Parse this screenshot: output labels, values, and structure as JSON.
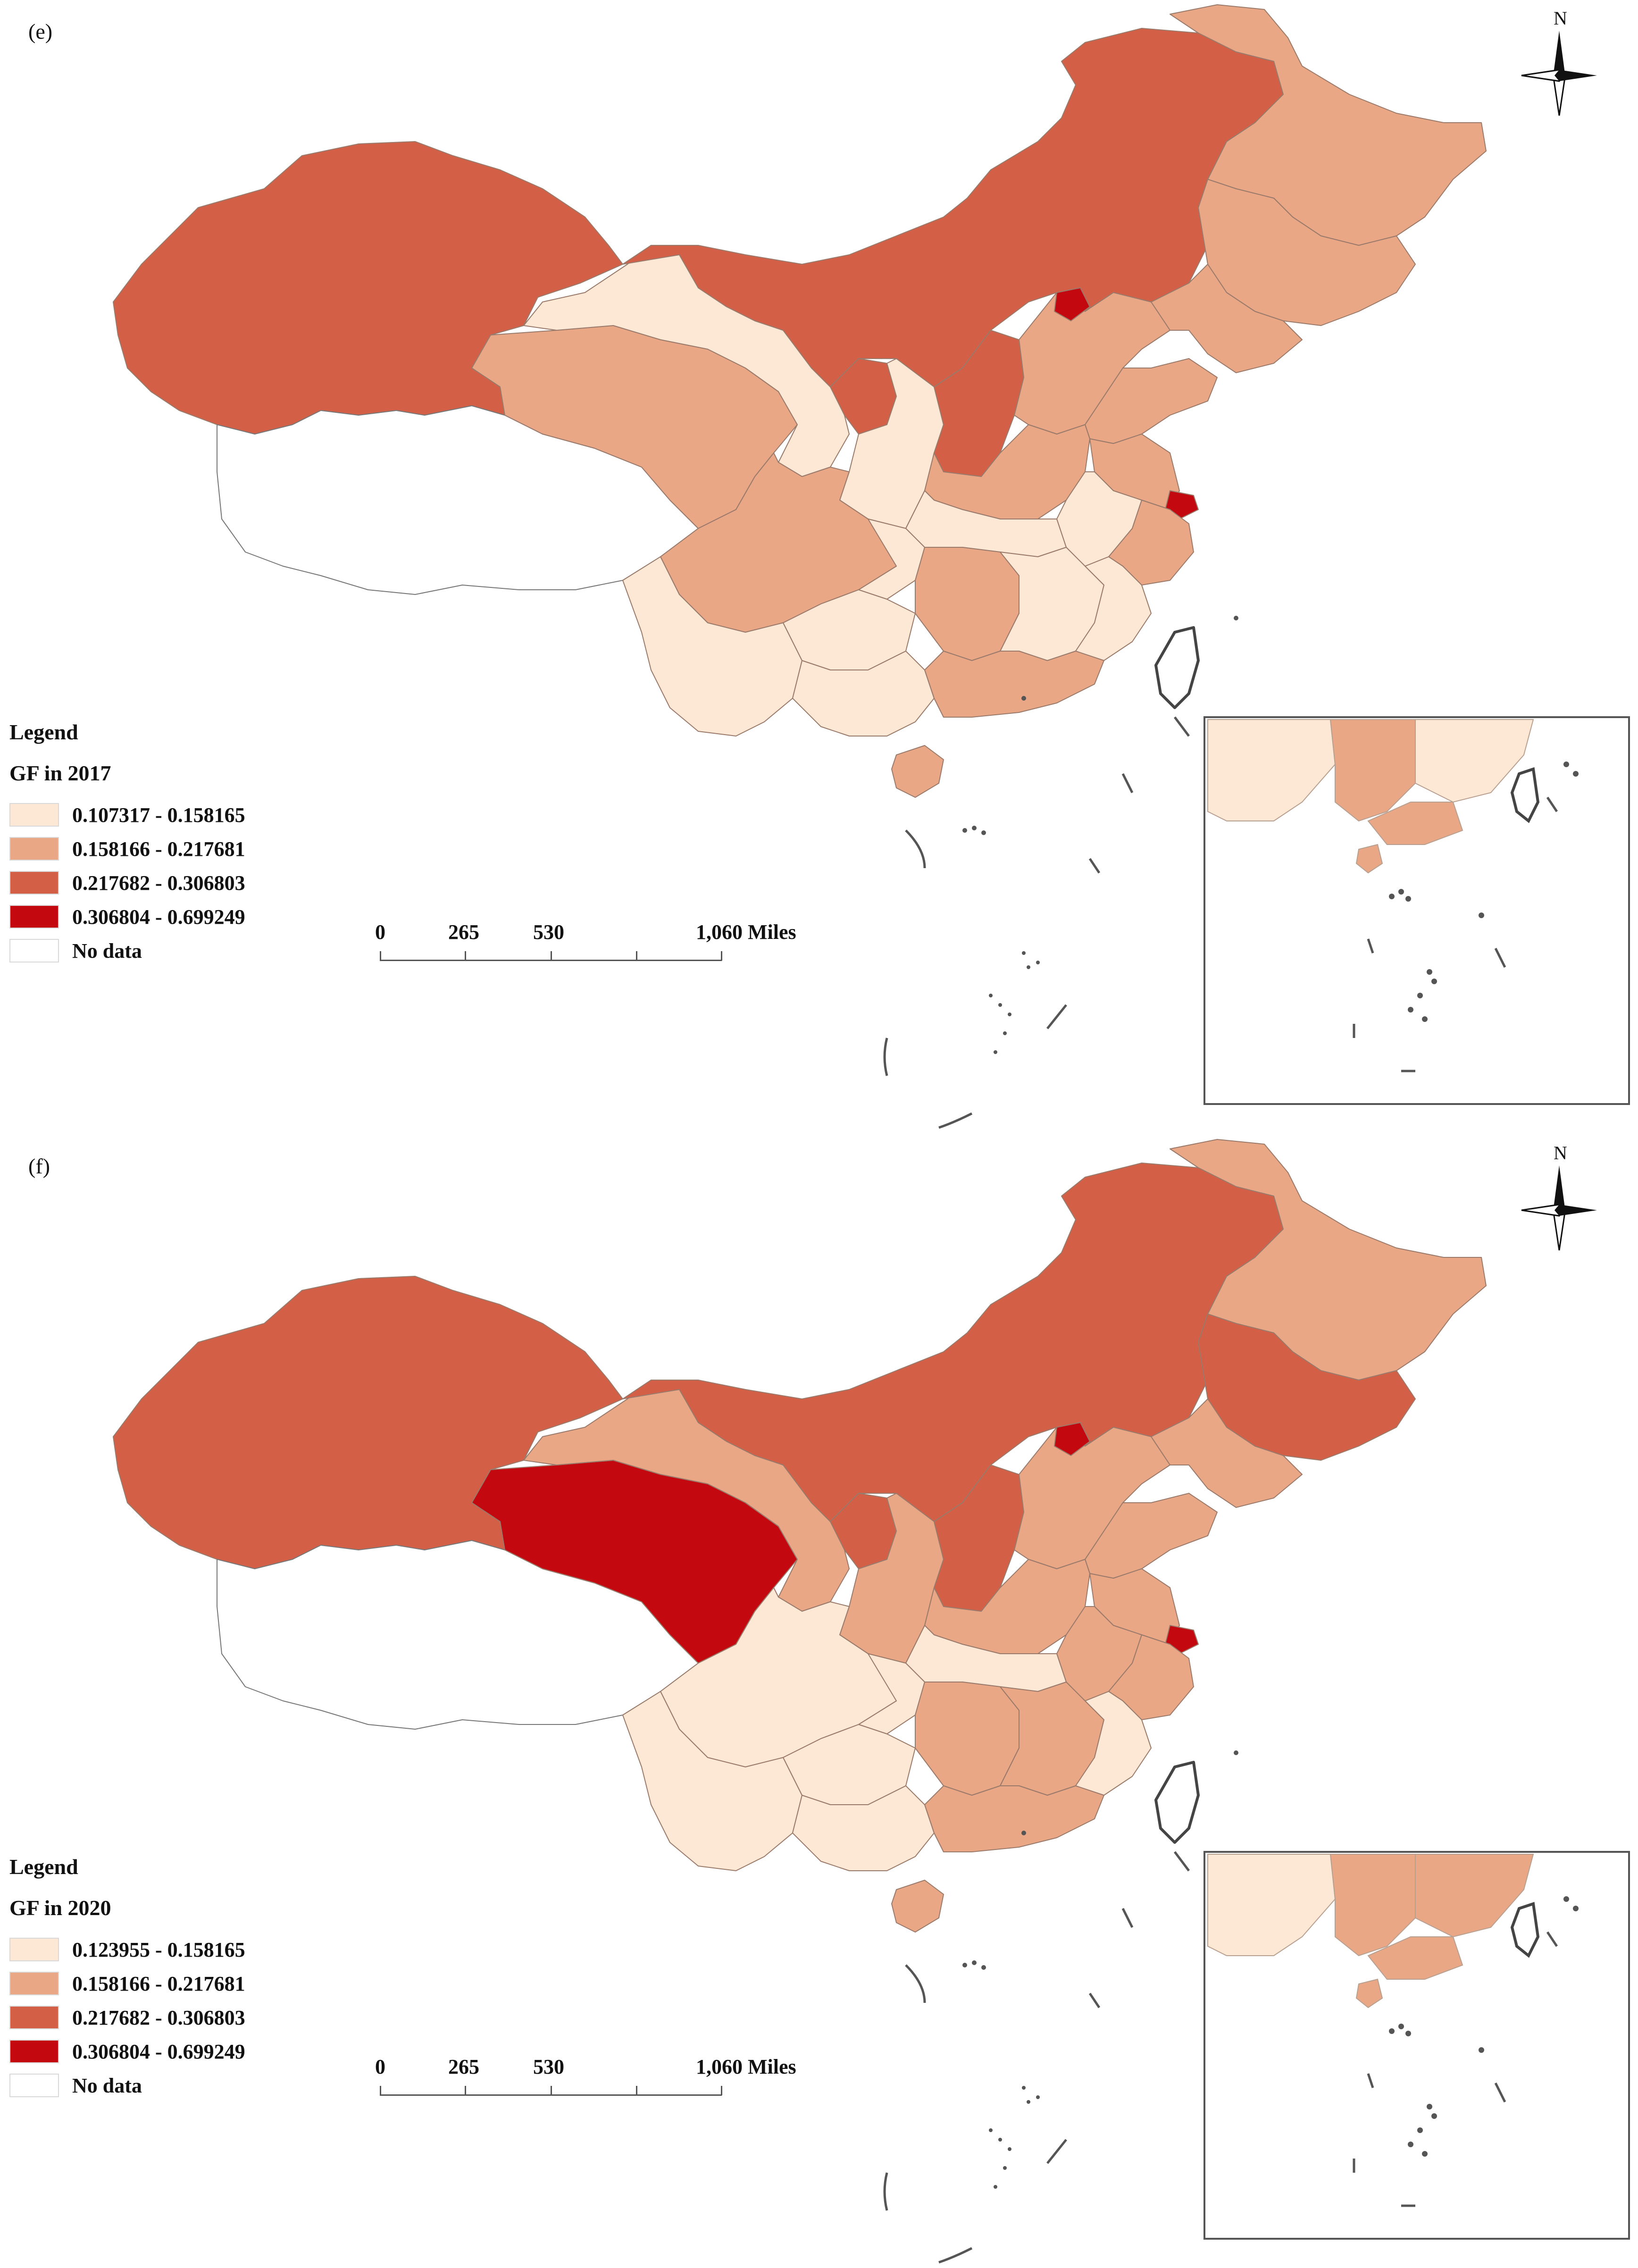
{
  "panels": [
    {
      "label": "(e)",
      "legend": {
        "title": "Legend",
        "subtitle": "GF in 2017",
        "classes": [
          {
            "range": "0.107317 - 0.158165",
            "color": "#fde8d6"
          },
          {
            "range": "0.158166 - 0.217681",
            "color": "#e9a786"
          },
          {
            "range": "0.217682 - 0.306803",
            "color": "#d35f47"
          },
          {
            "range": "0.306804 - 0.699249",
            "color": "#c4080f"
          },
          {
            "range": "No data",
            "color": "#ffffff"
          }
        ]
      }
    },
    {
      "label": "(f)",
      "legend": {
        "title": "Legend",
        "subtitle": "GF in 2020",
        "classes": [
          {
            "range": "0.123955 - 0.158165",
            "color": "#fde8d6"
          },
          {
            "range": "0.158166 - 0.217681",
            "color": "#e9a786"
          },
          {
            "range": "0.217682 - 0.306803",
            "color": "#d35f47"
          },
          {
            "range": "0.306804 - 0.699249",
            "color": "#c4080f"
          },
          {
            "range": "No data",
            "color": "#ffffff"
          }
        ]
      }
    }
  ],
  "scalebar": {
    "labels": [
      "0",
      "265",
      "530",
      "1,060 Miles"
    ]
  },
  "north_arrow": {
    "label": "N",
    "icon": "compass-rose-icon"
  }
}
